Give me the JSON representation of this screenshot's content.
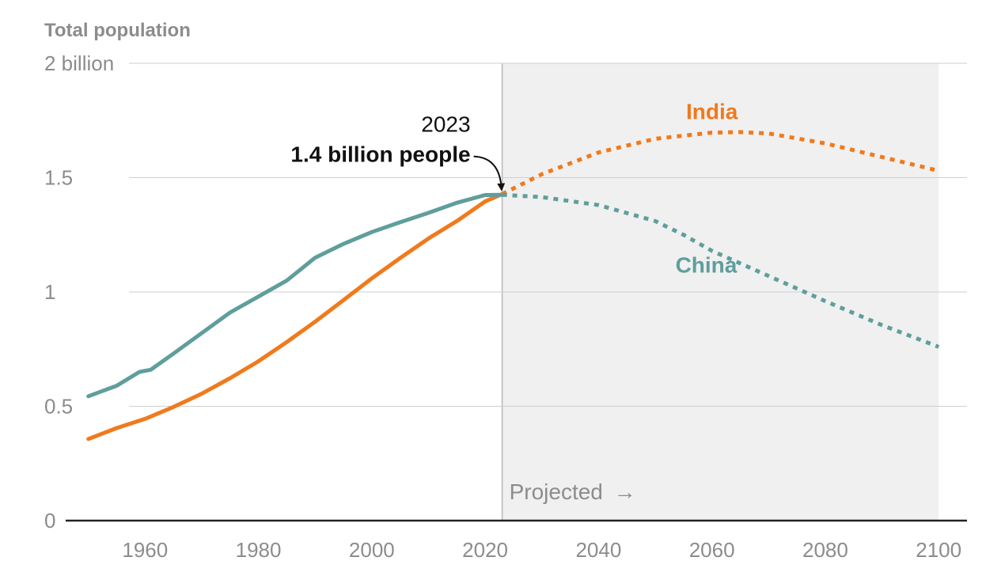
{
  "chart_data": {
    "type": "line",
    "title": "Total population",
    "xlabel": "",
    "ylabel": "Total population",
    "xlim": [
      1946,
      2105
    ],
    "ylim": [
      0,
      2
    ],
    "x_ticks": [
      1960,
      1980,
      2000,
      2020,
      2040,
      2060,
      2080,
      2100
    ],
    "y_ticks": [
      {
        "value": 0,
        "label": "0"
      },
      {
        "value": 0.5,
        "label": "0.5"
      },
      {
        "value": 1,
        "label": "1"
      },
      {
        "value": 1.5,
        "label": "1.5"
      },
      {
        "value": 2,
        "label": "2 billion"
      }
    ],
    "projection": {
      "start": 2023,
      "end": 2100,
      "label": "Projected",
      "arrow": "→"
    },
    "annotation": {
      "x": 2023,
      "y": 1.43,
      "year": "2023",
      "text": "1.4 billion people"
    },
    "series": [
      {
        "name": "India",
        "color": "#f07a1c",
        "label_at": {
          "x": 2060,
          "y": 1.79
        },
        "history": [
          [
            1950,
            0.357
          ],
          [
            1955,
            0.405
          ],
          [
            1960,
            0.445
          ],
          [
            1965,
            0.497
          ],
          [
            1970,
            0.555
          ],
          [
            1975,
            0.623
          ],
          [
            1980,
            0.697
          ],
          [
            1985,
            0.781
          ],
          [
            1990,
            0.87
          ],
          [
            1995,
            0.964
          ],
          [
            2000,
            1.059
          ],
          [
            2005,
            1.148
          ],
          [
            2010,
            1.234
          ],
          [
            2015,
            1.31
          ],
          [
            2020,
            1.396
          ],
          [
            2023,
            1.428
          ]
        ],
        "projection": [
          [
            2023,
            1.428
          ],
          [
            2030,
            1.515
          ],
          [
            2040,
            1.61
          ],
          [
            2050,
            1.67
          ],
          [
            2060,
            1.697
          ],
          [
            2065,
            1.699
          ],
          [
            2070,
            1.693
          ],
          [
            2080,
            1.65
          ],
          [
            2090,
            1.59
          ],
          [
            2100,
            1.53
          ]
        ]
      },
      {
        "name": "China",
        "color": "#5f9e9c",
        "label_at": {
          "x": 2059,
          "y": 1.12
        },
        "history": [
          [
            1950,
            0.544
          ],
          [
            1955,
            0.59
          ],
          [
            1959,
            0.65
          ],
          [
            1961,
            0.66
          ],
          [
            1965,
            0.73
          ],
          [
            1970,
            0.82
          ],
          [
            1975,
            0.91
          ],
          [
            1980,
            0.98
          ],
          [
            1985,
            1.05
          ],
          [
            1990,
            1.15
          ],
          [
            1995,
            1.21
          ],
          [
            2000,
            1.262
          ],
          [
            2005,
            1.305
          ],
          [
            2010,
            1.346
          ],
          [
            2015,
            1.39
          ],
          [
            2020,
            1.424
          ],
          [
            2023,
            1.425
          ]
        ],
        "projection": [
          [
            2023,
            1.425
          ],
          [
            2030,
            1.415
          ],
          [
            2040,
            1.38
          ],
          [
            2050,
            1.31
          ],
          [
            2055,
            1.25
          ],
          [
            2060,
            1.18
          ],
          [
            2070,
            1.07
          ],
          [
            2080,
            0.96
          ],
          [
            2090,
            0.855
          ],
          [
            2100,
            0.76
          ]
        ]
      }
    ]
  }
}
